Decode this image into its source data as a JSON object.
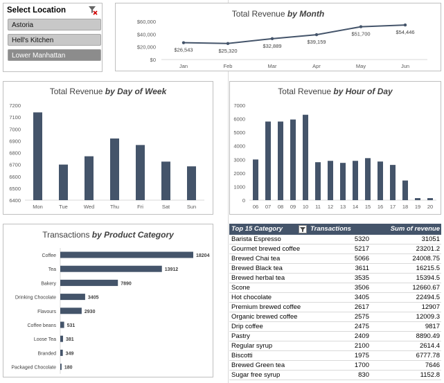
{
  "slicer": {
    "title": "Select Location",
    "clear_icon": "clear-filter-icon",
    "items": [
      {
        "label": "Astoria",
        "selected": true
      },
      {
        "label": "Hell's Kitchen",
        "selected": true
      },
      {
        "label": "Lower Manhattan",
        "selected": false
      }
    ]
  },
  "colors": {
    "bar": "#44546a",
    "line": "#44546a"
  },
  "chart_data": [
    {
      "type": "line",
      "title_plain": "Total Revenue",
      "title_em": "by Month",
      "categories": [
        "Jan",
        "Feb",
        "Mar",
        "Apr",
        "May",
        "Jun"
      ],
      "values": [
        26543,
        25320,
        32889,
        39159,
        51700,
        54446
      ],
      "data_labels": [
        "$26,543",
        "$25,320",
        "$32,889",
        "$39,159",
        "$51,700",
        "$54,446"
      ],
      "y_ticks": [
        "$0",
        "$20,000",
        "$40,000",
        "$60,000"
      ],
      "ylim": [
        0,
        60000
      ]
    },
    {
      "type": "bar",
      "title_plain": "Total Revenue",
      "title_em": "by Day of Week",
      "categories": [
        "Mon",
        "Tue",
        "Wed",
        "Thu",
        "Fri",
        "Sat",
        "Sun"
      ],
      "values": [
        7140,
        6700,
        6770,
        6920,
        6865,
        6725,
        6685
      ],
      "y_ticks": [
        "6400",
        "6500",
        "6600",
        "6700",
        "6800",
        "6900",
        "7000",
        "7100",
        "7200"
      ],
      "ylim": [
        6400,
        7200
      ]
    },
    {
      "type": "bar",
      "title_plain": "Total Revenue",
      "title_em": "by Hour of Day",
      "categories": [
        "06",
        "07",
        "08",
        "09",
        "10",
        "11",
        "12",
        "13",
        "14",
        "15",
        "16",
        "17",
        "18",
        "19",
        "20"
      ],
      "values": [
        3000,
        5800,
        5800,
        5950,
        6300,
        2800,
        2900,
        2750,
        2900,
        3100,
        2850,
        2600,
        1450,
        150,
        150
      ],
      "y_ticks": [
        "0",
        "1000",
        "2000",
        "3000",
        "4000",
        "5000",
        "6000",
        "7000"
      ],
      "ylim": [
        0,
        7000
      ]
    },
    {
      "type": "bar",
      "orientation": "horizontal",
      "title_plain": "Transactions",
      "title_em": "by Product Category",
      "categories": [
        "Coffee",
        "Tea",
        "Bakery",
        "Drinking Chocolate",
        "Flavours",
        "Coffee beans",
        "Loose Tea",
        "Branded",
        "Packaged Chocolate"
      ],
      "values": [
        18204,
        13912,
        7890,
        3405,
        2930,
        531,
        381,
        349,
        180
      ],
      "data_labels": [
        "18204",
        "13912",
        "7890",
        "3405",
        "2930",
        "531",
        "381",
        "349",
        "180"
      ]
    }
  ],
  "table": {
    "headers": {
      "category": "Top 15 Category",
      "transactions": "Transactions",
      "revenue": "Sum of revenue"
    },
    "filter_icon": "filter-icon",
    "rows": [
      {
        "category": "Barista Espresso",
        "transactions": "5320",
        "revenue": "31051"
      },
      {
        "category": "Gourmet brewed coffee",
        "transactions": "5217",
        "revenue": "23201.2"
      },
      {
        "category": "Brewed Chai tea",
        "transactions": "5066",
        "revenue": "24008.75"
      },
      {
        "category": "Brewed Black tea",
        "transactions": "3611",
        "revenue": "16215.5"
      },
      {
        "category": "Brewed herbal tea",
        "transactions": "3535",
        "revenue": "15394.5"
      },
      {
        "category": "Scone",
        "transactions": "3506",
        "revenue": "12660.67"
      },
      {
        "category": "Hot chocolate",
        "transactions": "3405",
        "revenue": "22494.5"
      },
      {
        "category": "Premium brewed coffee",
        "transactions": "2617",
        "revenue": "12907"
      },
      {
        "category": "Organic brewed coffee",
        "transactions": "2575",
        "revenue": "12009.3"
      },
      {
        "category": "Drip coffee",
        "transactions": "2475",
        "revenue": "9817"
      },
      {
        "category": "Pastry",
        "transactions": "2409",
        "revenue": "8890.49"
      },
      {
        "category": "Regular syrup",
        "transactions": "2100",
        "revenue": "2614.4"
      },
      {
        "category": "Biscotti",
        "transactions": "1975",
        "revenue": "6777.78"
      },
      {
        "category": "Brewed Green tea",
        "transactions": "1700",
        "revenue": "7646"
      },
      {
        "category": "Sugar free syrup",
        "transactions": "830",
        "revenue": "1152.8"
      }
    ]
  }
}
